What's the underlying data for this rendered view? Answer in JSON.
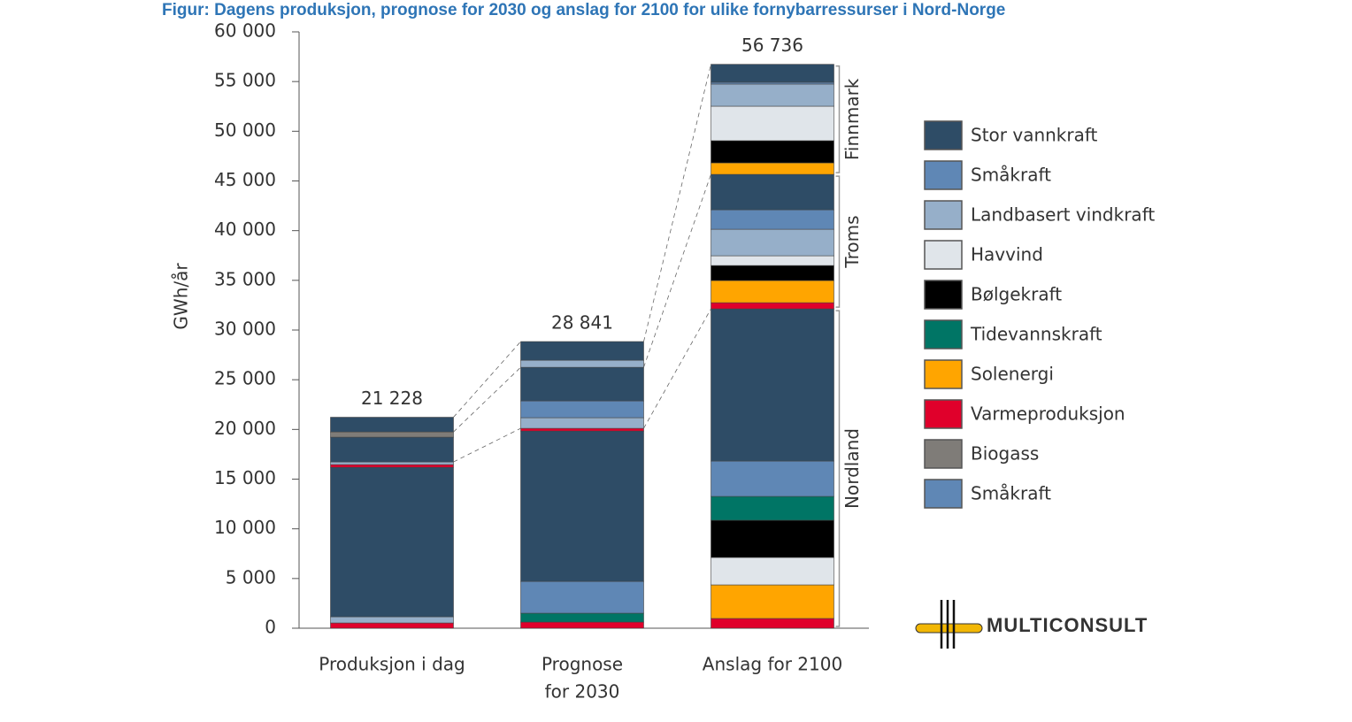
{
  "chart_data": {
    "type": "stacked-bar",
    "title": "Figur: Dagens produksjon, prognose for 2030 og anslag for 2100 for ulike fornybarressurser i Nord-Norge",
    "y_label": "GWh/år",
    "categories": [
      "Produksjon i dag",
      [
        "Prognose",
        "for 2030"
      ],
      "Anslag for 2100"
    ],
    "totals": [
      21228,
      28841,
      56736
    ],
    "value_labels": [
      "21 228",
      "28 841",
      "56 736"
    ],
    "ylim": [
      0,
      60000
    ],
    "yticks": [
      0,
      {
        "value": 5000,
        "label": "5 000"
      },
      {
        "value": 10000,
        "label": "10 000"
      },
      {
        "value": 15000,
        "label": "15 000"
      },
      {
        "value": 20000,
        "label": "20 000"
      },
      {
        "value": 25000,
        "label": "25 000"
      },
      {
        "value": 30000,
        "label": "30 000"
      },
      {
        "value": 35000,
        "label": "35 000"
      },
      {
        "value": 40000,
        "label": "40 000"
      },
      {
        "value": 45000,
        "label": "45 000"
      },
      {
        "value": 50000,
        "label": "50 000"
      },
      {
        "value": 55000,
        "label": "55 000"
      },
      {
        "value": 60000,
        "label": "60 000"
      }
    ],
    "regions": [
      {
        "name": "Nordland",
        "series": [
          {
            "color": "#e0002b",
            "values": [
              530,
              620,
              980
            ]
          },
          {
            "color": "#ffa500",
            "values": [
              0,
              0,
              3380
            ]
          },
          {
            "color": "#e0e5ea",
            "values": [
              0,
              0,
              2760
            ]
          },
          {
            "color": "#000000",
            "values": [
              0,
              0,
              3740
            ]
          },
          {
            "color": "#007565",
            "values": [
              0,
              890,
              2400
            ]
          },
          {
            "color": "#96afc9",
            "values": [
              620,
              0,
              0
            ]
          },
          {
            "color": "#5f87b5",
            "values": [
              0,
              3200,
              3560
            ]
          },
          {
            "color": "#2e4c66",
            "values": [
              15040,
              15130,
              15310
            ]
          },
          {
            "color": "#e0002b",
            "values": [
              270,
              270,
              0
            ]
          },
          {
            "color": "#96afc9",
            "values": [
              270,
              0,
              0
            ]
          }
        ]
      },
      {
        "name": "Troms",
        "series": [
          {
            "color": "#e0002b",
            "values": [
              0,
              0,
              620
            ]
          },
          {
            "color": "#ffa500",
            "values": [
              0,
              0,
              2230
            ]
          },
          {
            "color": "#000000",
            "values": [
              0,
              0,
              1510
            ]
          },
          {
            "color": "#e0e5ea",
            "values": [
              0,
              0,
              980
            ]
          },
          {
            "color": "#96afc9",
            "values": [
              0,
              1070,
              2670
            ]
          },
          {
            "color": "#5f87b5",
            "values": [
              0,
              1690,
              1960
            ]
          },
          {
            "color": "#2e4c66",
            "values": [
              2490,
              3380,
              3560
            ]
          },
          {
            "color": "#7f7c78",
            "values": [
              530,
              0,
              0
            ]
          }
        ]
      },
      {
        "name": "Finnmark",
        "series": [
          {
            "color": "#ffa500",
            "values": [
              0,
              0,
              1160
            ]
          },
          {
            "color": "#000000",
            "values": [
              0,
              0,
              2230
            ]
          },
          {
            "color": "#e0e5ea",
            "values": [
              0,
              0,
              3470
            ]
          },
          {
            "color": "#96afc9",
            "values": [
              0,
              710,
              2230
            ]
          },
          {
            "color": "#5f87b5",
            "values": [
              0,
              0,
              180
            ]
          },
          {
            "color": "#2e4c66",
            "values": [
              1478,
              1881,
              1806
            ]
          }
        ]
      }
    ],
    "legend": [
      {
        "name": "Stor vannkraft",
        "color": "#2e4c66"
      },
      {
        "name": "Småkraft",
        "color": "#5f87b5"
      },
      {
        "name": "Landbasert vindkraft",
        "color": "#96afc9"
      },
      {
        "name": "Havvind",
        "color": "#e0e5ea"
      },
      {
        "name": "Bølgekraft",
        "color": "#000000"
      },
      {
        "name": "Tidevannskraft",
        "color": "#007565"
      },
      {
        "name": "Solenergi",
        "color": "#ffa500"
      },
      {
        "name": "Varmeproduksjon",
        "color": "#e0002b"
      },
      {
        "name": "Biogass",
        "color": "#7f7c78"
      },
      {
        "name": "Småkraft",
        "color": "#5f87b5"
      }
    ],
    "logo": "MULTICONSULT"
  }
}
